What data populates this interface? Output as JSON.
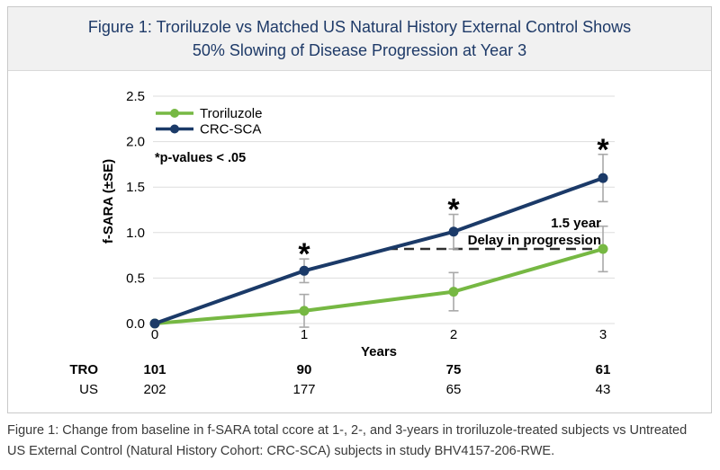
{
  "title": {
    "line1": "Figure 1: Troriluzole vs Matched US Natural History External Control Shows",
    "line2": "50% Slowing of Disease Progression at Year 3"
  },
  "legend": {
    "troriluzole": "Troriluzole",
    "crc_sca": "CRC-SCA",
    "pvalue_note": "*p-values < .05"
  },
  "axes": {
    "y_label": "f-SARA (±SE)",
    "x_label": "Years",
    "y_ticks": [
      "2.5",
      "2.0",
      "1.5",
      "1.0",
      "0.5",
      "0.0"
    ],
    "x_ticks": [
      "0",
      "1",
      "2",
      "3"
    ]
  },
  "annotation": {
    "line1": "1.5 year",
    "line2": "Delay in progression"
  },
  "counts_table": {
    "rows": [
      {
        "label": "TRO",
        "values": [
          "101",
          "90",
          "75",
          "61"
        ]
      },
      {
        "label": "US",
        "values": [
          "202",
          "177",
          "65",
          "43"
        ]
      }
    ]
  },
  "footer": {
    "caption_line1": "Figure 1: Change from baseline in f-SARA total ccore at 1-, 2-, and 3-years in troriluzole-treated subjects vs Untreated",
    "caption_line2": "US External Control (Natural History Cohort: CRC-SCA) subjects in study BHV4157-206-RWE."
  },
  "colors": {
    "troriluzole_green": "#76b843",
    "crc_navy": "#1b3a68",
    "title_navy": "#1e3a68",
    "error_bar_gray": "#a9a9a9",
    "gridline": "#dddddd",
    "dashed_line": "#2f2f2f",
    "significance_marker": "#000000",
    "title_bar_bg": "#f1f1f1",
    "panel_border": "#c9c9c9",
    "footer_text": "#3a3a3a"
  },
  "chart_data": {
    "type": "line",
    "title": "Figure 1: Troriluzole vs Matched US Natural History External Control Shows 50% Slowing of Disease Progression at Year 3",
    "xlabel": "Years",
    "ylabel": "f-SARA (±SE)",
    "x": [
      0,
      1,
      2,
      3
    ],
    "ylim": [
      0,
      2.5
    ],
    "y_tick_step": 0.5,
    "grid": true,
    "legend_position": "top-left",
    "series": [
      {
        "name": "Troriluzole",
        "color": "#76b843",
        "values": [
          0,
          0.14,
          0.35,
          0.82
        ],
        "se": [
          0,
          0.18,
          0.21,
          0.25
        ]
      },
      {
        "name": "CRC-SCA",
        "color": "#1b3a68",
        "values": [
          0,
          0.58,
          1.01,
          1.6
        ],
        "se": [
          0,
          0.13,
          0.19,
          0.26
        ]
      }
    ],
    "significance": {
      "marker": "*",
      "note": "*p-values < .05",
      "x_positions": [
        1,
        2,
        3
      ],
      "applies_to": "CRC-SCA"
    },
    "annotation": {
      "text": "1.5 year Delay in progression",
      "dashed_line_y": 0.82,
      "dashed_line_x_range": [
        1.56,
        3
      ]
    },
    "at_risk_table": {
      "rows": [
        {
          "label": "TRO",
          "counts": [
            101,
            90,
            75,
            61
          ]
        },
        {
          "label": "US",
          "counts": [
            202,
            177,
            65,
            43
          ]
        }
      ]
    }
  }
}
